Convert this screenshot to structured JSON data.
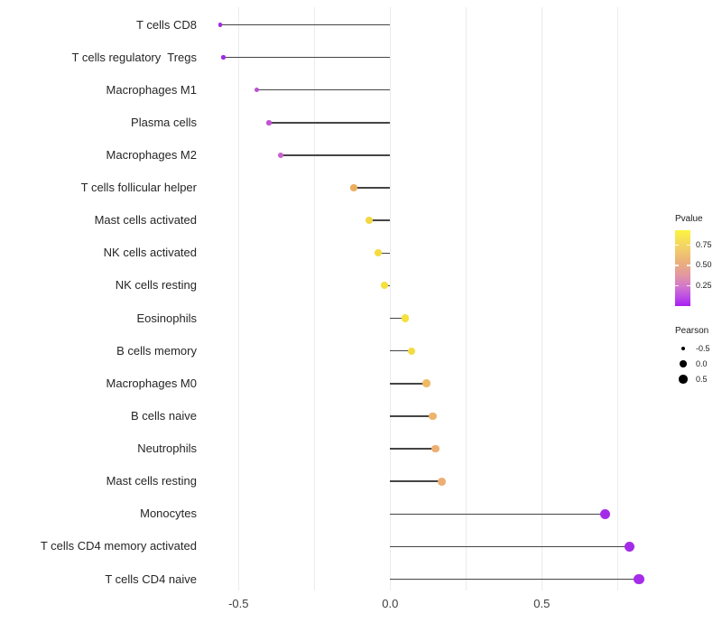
{
  "chart_data": {
    "type": "lollipop",
    "orientation": "horizontal",
    "title": "",
    "xlabel": "",
    "ylabel": "",
    "categories": [
      "T cells CD8",
      "T cells regulatory  Tregs",
      "Macrophages M1",
      "Plasma cells",
      "Macrophages M2",
      "T cells follicular helper",
      "Mast cells activated",
      "NK cells activated",
      "NK cells resting",
      "Eosinophils",
      "B cells memory",
      "Macrophages M0",
      "B cells naive",
      "Neutrophils",
      "Mast cells resting",
      "Monocytes",
      "T cells CD4 memory activated",
      "T cells CD4 naive"
    ],
    "series": [
      {
        "name": "Pearson",
        "values": [
          -0.56,
          -0.55,
          -0.44,
          -0.4,
          -0.36,
          -0.12,
          -0.07,
          -0.04,
          -0.02,
          0.05,
          0.07,
          0.12,
          0.14,
          0.15,
          0.17,
          0.71,
          0.79,
          0.82
        ]
      }
    ],
    "pvalues_est": [
      0.02,
      0.02,
      0.1,
      0.12,
      0.17,
      0.63,
      0.78,
      0.86,
      0.92,
      0.9,
      0.82,
      0.62,
      0.58,
      0.55,
      0.52,
      0.01,
      0.01,
      0.01
    ],
    "point_colors": [
      "#A02BE2",
      "#A02BE2",
      "#BC4FD2",
      "#C253D2",
      "#C95FD0",
      "#EBAE5E",
      "#F2D844",
      "#F4DC40",
      "#F6E03C",
      "#F5E03C",
      "#F3DC42",
      "#EEB964",
      "#EDB36B",
      "#ECAF70",
      "#ECAE74",
      "#A42BE8",
      "#A42BE8",
      "#A62BEA"
    ],
    "baseline": 0,
    "xlim": [
      -0.62,
      0.9
    ],
    "x_gridlines": [
      -0.5,
      -0.25,
      0,
      0.25,
      0.5,
      0.75
    ],
    "x_ticks": [
      -0.5,
      0,
      0.5
    ],
    "x_tick_labels": [
      "-0.5",
      "0.0",
      "0.5"
    ],
    "grid": true,
    "legend_position": "right",
    "legend": {
      "pvalue": {
        "title": "Pvalue",
        "range": [
          0,
          0.93
        ],
        "tick_values": [
          0.75,
          0.5,
          0.25
        ],
        "tick_labels": [
          "0.75",
          "0.50",
          "0.25"
        ],
        "gradient_stops": [
          {
            "color": "#FBF440",
            "pos": 0
          },
          {
            "color": "#F2CF69",
            "pos": 24
          },
          {
            "color": "#EBAF7D",
            "pos": 43
          },
          {
            "color": "#E397A0",
            "pos": 59
          },
          {
            "color": "#D377CC",
            "pos": 74
          },
          {
            "color": "#BC4DE6",
            "pos": 88
          },
          {
            "color": "#A81FF2",
            "pos": 100
          }
        ]
      },
      "pearson": {
        "title": "Pearson",
        "entries": [
          {
            "label": "-0.5",
            "value": -0.5,
            "diameter": 4.5
          },
          {
            "label": "0.0",
            "value": 0.0,
            "diameter": 7.5
          },
          {
            "label": "0.5",
            "value": 0.5,
            "diameter": 9.5
          }
        ]
      }
    },
    "colors": {
      "stem": "#454545",
      "gridline": "#ebebeb",
      "background": "#ffffff"
    }
  }
}
